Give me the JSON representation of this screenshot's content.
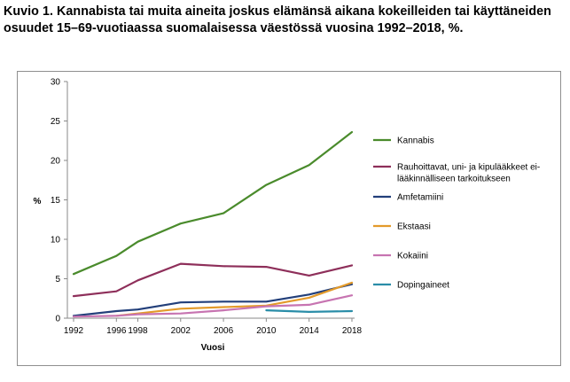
{
  "figure": {
    "title": "Kuvio 1. Kannabista tai muita aineita joskus elämänsä aikana kokeilleiden tai käyttäneiden osuudet 15–69-vuotiaassa suomalaisessa väestössä vuosina 1992–2018, %."
  },
  "chart_data": {
    "type": "line",
    "title": "",
    "xlabel": "Vuosi",
    "ylabel": "%",
    "xlim": [
      1992,
      2018
    ],
    "ylim": [
      0,
      30
    ],
    "x_ticks": [
      1992,
      1996,
      1998,
      2002,
      2006,
      2010,
      2014,
      2018
    ],
    "y_ticks": [
      0,
      5,
      10,
      15,
      20,
      25,
      30
    ],
    "grid": false,
    "legend_position": "right",
    "series": [
      {
        "name": "Kannabis",
        "color": "#4a8b2c",
        "label_lines": [
          "Kannabis"
        ],
        "points": [
          [
            1992,
            5.6
          ],
          [
            1996,
            7.9
          ],
          [
            1998,
            9.7
          ],
          [
            2002,
            12.0
          ],
          [
            2006,
            13.3
          ],
          [
            2010,
            16.9
          ],
          [
            2014,
            19.4
          ],
          [
            2018,
            23.6
          ]
        ]
      },
      {
        "name": "Rauhoittavat, uni- ja kipulääkkeet ei-lääkinnälliseen tarkoitukseen",
        "color": "#8e2f5a",
        "label_lines": [
          "Rauhoittavat, uni- ja kipulääkkeet ei-",
          "lääkinnälliseen tarkoitukseen"
        ],
        "points": [
          [
            1992,
            2.8
          ],
          [
            1996,
            3.4
          ],
          [
            1998,
            4.8
          ],
          [
            2002,
            6.9
          ],
          [
            2006,
            6.6
          ],
          [
            2010,
            6.5
          ],
          [
            2014,
            5.4
          ],
          [
            2018,
            6.7
          ]
        ]
      },
      {
        "name": "Amfetamiini",
        "color": "#223f7a",
        "label_lines": [
          "Amfetamiini"
        ],
        "points": [
          [
            1992,
            0.3
          ],
          [
            1996,
            0.9
          ],
          [
            1998,
            1.1
          ],
          [
            2002,
            2.0
          ],
          [
            2006,
            2.1
          ],
          [
            2010,
            2.1
          ],
          [
            2014,
            3.0
          ],
          [
            2018,
            4.3
          ]
        ]
      },
      {
        "name": "Ekstaasi",
        "color": "#e39a2a",
        "label_lines": [
          "Ekstaasi"
        ],
        "points": [
          [
            1996,
            0.3
          ],
          [
            1998,
            0.6
          ],
          [
            2002,
            1.2
          ],
          [
            2006,
            1.4
          ],
          [
            2010,
            1.6
          ],
          [
            2014,
            2.6
          ],
          [
            2018,
            4.5
          ]
        ]
      },
      {
        "name": "Kokaiini",
        "color": "#c774b1",
        "label_lines": [
          "Kokaiini"
        ],
        "points": [
          [
            1992,
            0.2
          ],
          [
            1996,
            0.3
          ],
          [
            1998,
            0.5
          ],
          [
            2002,
            0.6
          ],
          [
            2006,
            1.0
          ],
          [
            2010,
            1.5
          ],
          [
            2014,
            1.7
          ],
          [
            2018,
            2.9
          ]
        ]
      },
      {
        "name": "Dopingaineet",
        "color": "#2a8da8",
        "label_lines": [
          "Dopingaineet"
        ],
        "points": [
          [
            2010,
            1.0
          ],
          [
            2014,
            0.8
          ],
          [
            2018,
            0.9
          ]
        ]
      }
    ]
  }
}
